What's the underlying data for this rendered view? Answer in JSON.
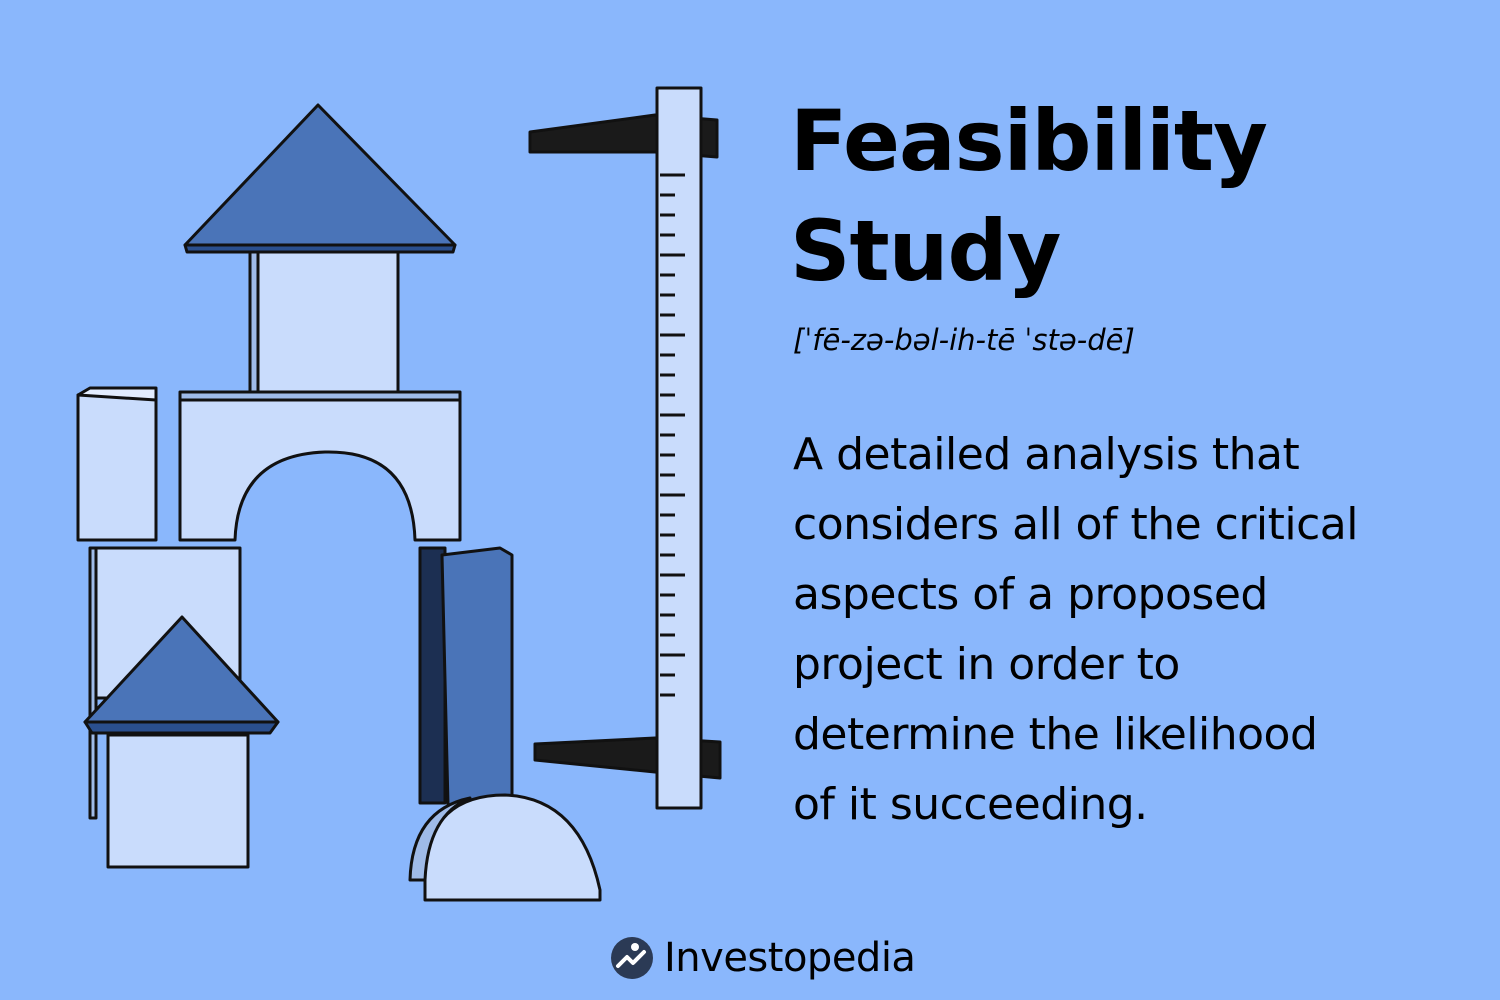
{
  "title": {
    "line1": "Feasibility",
    "line2": "Study"
  },
  "pronunciation": "[ˈfē-zə-bəl-ih-tē ˈstə-dē]",
  "definition": {
    "lines": [
      "A detailed analysis that",
      "considers all of the critical",
      "aspects of a proposed",
      "project in order to",
      "determine the likelihood",
      "of it succeeding."
    ]
  },
  "brand": {
    "name": "Investopedia",
    "icon": "investopedia-logo-icon"
  },
  "illustration": {
    "icons": [
      "building-blocks-tower-icon",
      "vertical-caliper-ruler-icon"
    ]
  },
  "colors": {
    "background": "#8ab7fc",
    "block_light": "#c9dcfc",
    "block_dark": "#4a74b8",
    "outline": "#111111"
  }
}
